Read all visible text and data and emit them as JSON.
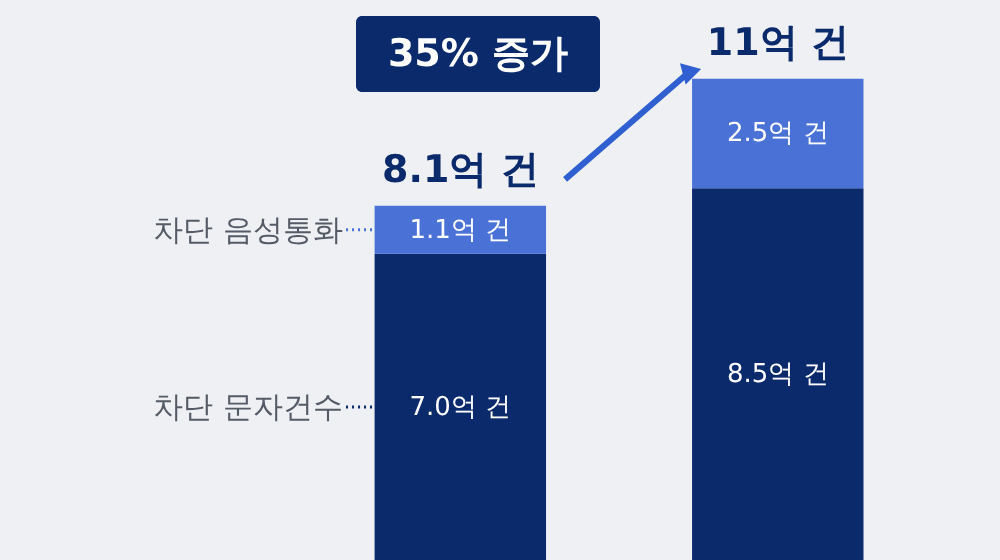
{
  "chart_data": {
    "type": "bar",
    "stacked": true,
    "categories": [
      null,
      null
    ],
    "series": [
      {
        "name": "차단 문자건수",
        "color": "#0b2a6b",
        "values": [
          7.0,
          8.5
        ],
        "value_labels": [
          "7.0억 건",
          "8.5억 건"
        ]
      },
      {
        "name": "차단 음성통화",
        "color": "#4a72d6",
        "values": [
          1.1,
          2.5
        ],
        "value_labels": [
          "1.1억 건",
          "2.5억 건"
        ]
      }
    ],
    "totals": [
      "8.1억 건",
      "11억 건"
    ],
    "ylim": [
      0,
      12.8
    ],
    "tick_labels": false,
    "legend": "left",
    "annotations": [
      "35% 증가"
    ]
  }
}
